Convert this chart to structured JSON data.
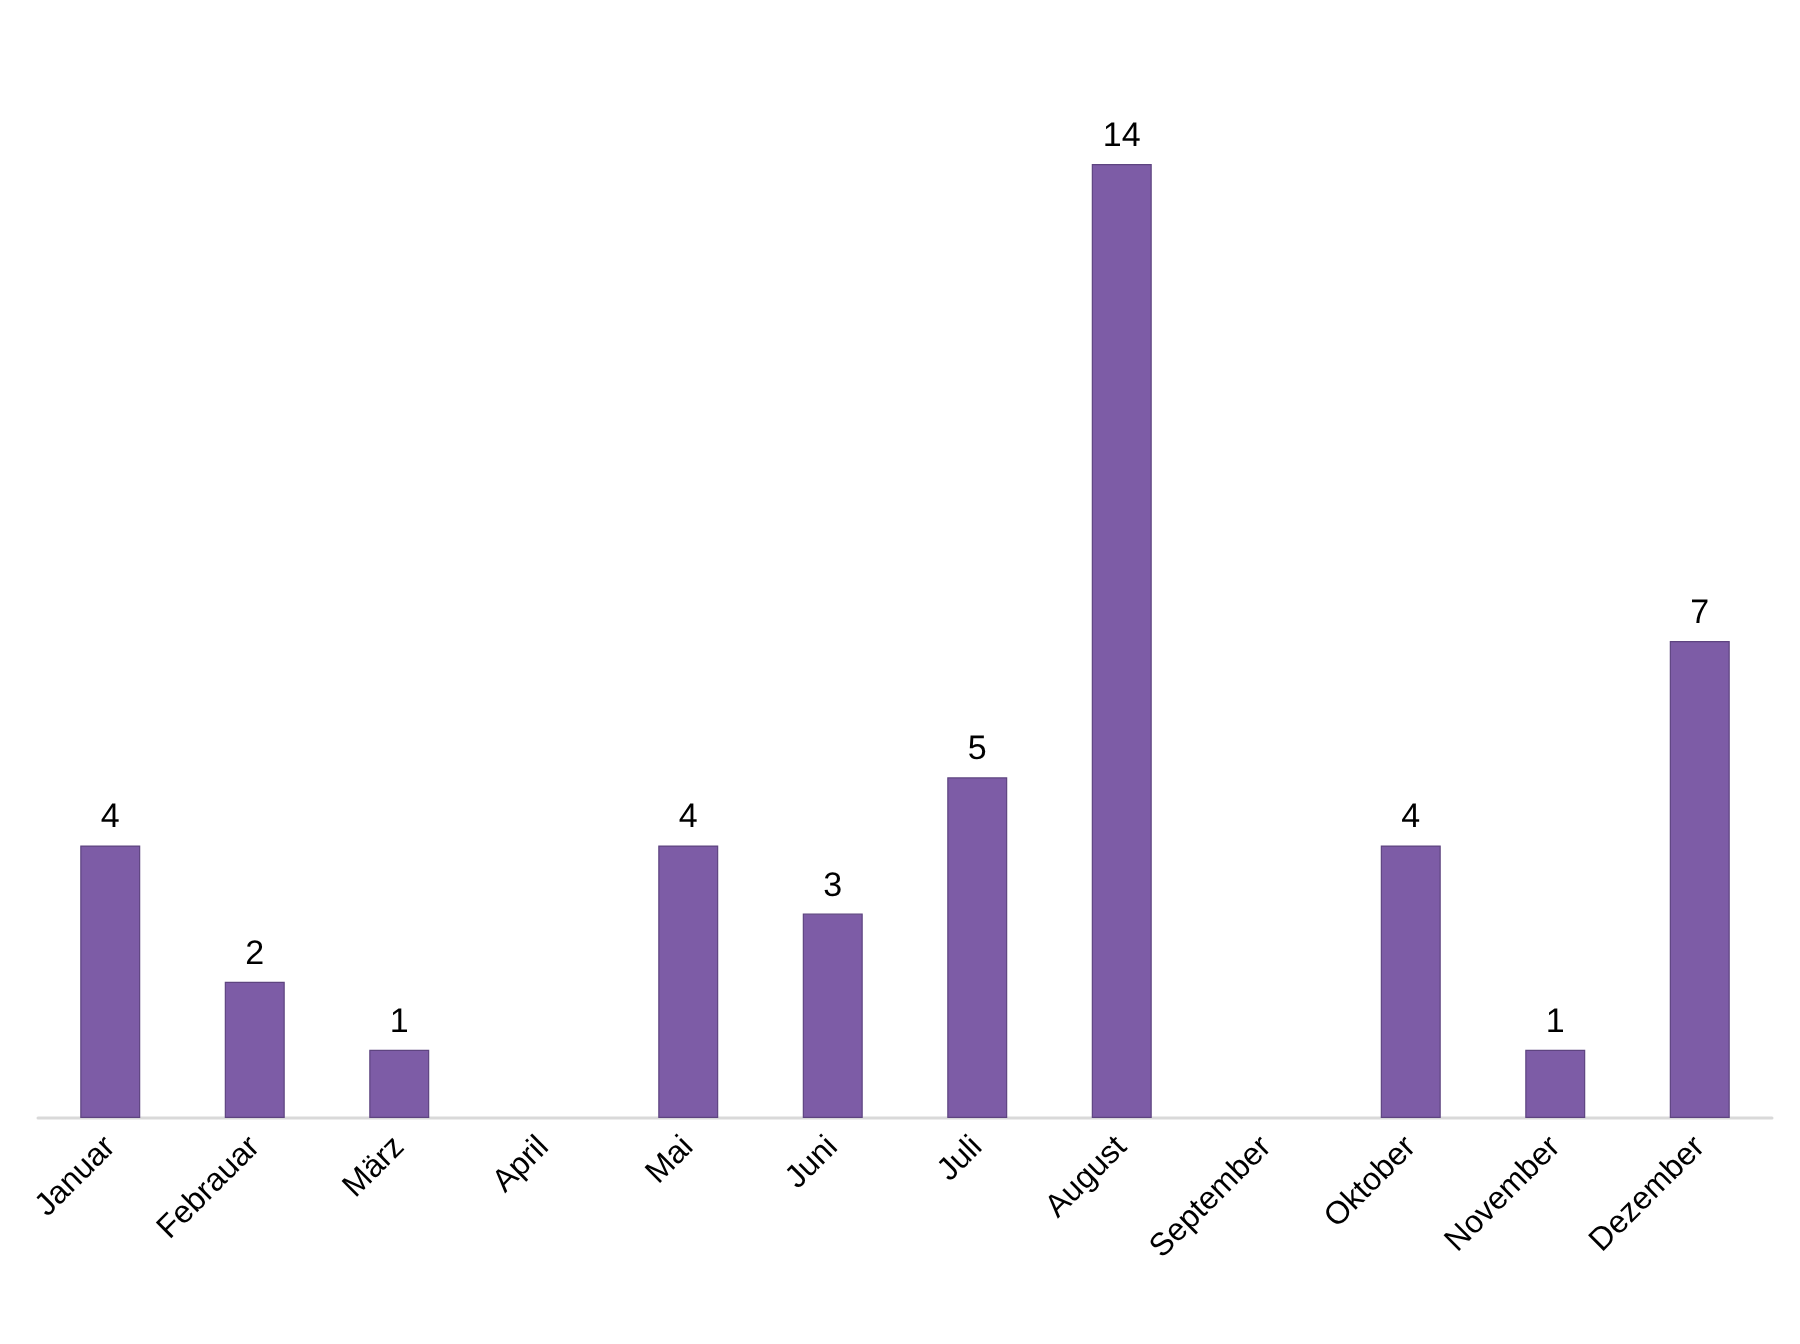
{
  "chart_data": {
    "type": "bar",
    "categories": [
      "Januar",
      "Febrauar",
      "März",
      "April",
      "Mai",
      "Juni",
      "Juli",
      "August",
      "September",
      "Oktober",
      "November",
      "Dezember"
    ],
    "values": [
      4,
      2,
      1,
      null,
      4,
      3,
      5,
      14,
      null,
      4,
      1,
      7
    ],
    "color": "#7d5ca6",
    "data_labels": true
  }
}
